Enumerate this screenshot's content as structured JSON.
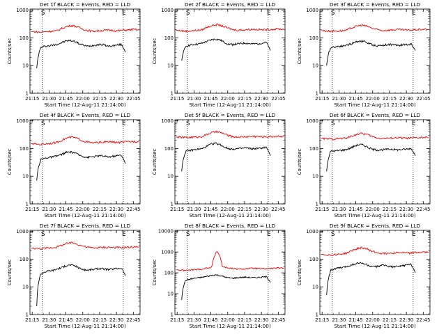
{
  "colors": {
    "events": "#000000",
    "lld": "#ee0000",
    "axes": "#000000",
    "markers": "#000000"
  },
  "chart_data": [
    {
      "type": "line",
      "title": "Det 1f BLACK = Events, RED = LLD",
      "xlabel": "Start Time (12-Aug-11 21:14:00)",
      "ylabel": "Counts/sec",
      "xticks": [
        "21:15",
        "21:30",
        "21:45",
        "22:00",
        "22:15",
        "22:30",
        "22:45"
      ],
      "yticks": [
        "1",
        "10",
        "100",
        "1000"
      ],
      "ylim": [
        1,
        1100
      ],
      "yscale": "log",
      "markers": [
        "S",
        "E"
      ],
      "grid": false,
      "series": [
        {
          "name": "BLACK = Events",
          "color": "#000000",
          "t0": "21:19",
          "t1": "22:38",
          "values": [
            8,
            45,
            50,
            52,
            55,
            60,
            68,
            78,
            80,
            75,
            62,
            55,
            50,
            52,
            56,
            58,
            55,
            50,
            52,
            55,
            58,
            30
          ]
        },
        {
          "name": "RED = LLD",
          "color": "#ee0000",
          "t0": "21:14",
          "t1": "22:50",
          "values": [
            170,
            165,
            160,
            170,
            175,
            180,
            220,
            260,
            280,
            250,
            210,
            185,
            175,
            180,
            185,
            190,
            185,
            180,
            190,
            195,
            200,
            195
          ]
        }
      ]
    },
    {
      "type": "line",
      "title": "Det 2f BLACK = Events, RED = LLD",
      "xlabel": "Start Time (12-Aug-11 21:14:00)",
      "ylabel": "Counts/sec",
      "xticks": [
        "21:15",
        "21:30",
        "21:45",
        "22:00",
        "22:15",
        "22:30",
        "22:45"
      ],
      "yticks": [
        "1",
        "10",
        "100",
        "1000"
      ],
      "ylim": [
        1,
        1100
      ],
      "yscale": "log",
      "markers": [
        "S",
        "E"
      ],
      "grid": false,
      "series": [
        {
          "name": "BLACK = Events",
          "color": "#000000",
          "t0": "21:19",
          "t1": "22:38",
          "values": [
            15,
            50,
            55,
            58,
            60,
            65,
            75,
            85,
            90,
            85,
            70,
            60,
            58,
            60,
            62,
            65,
            62,
            60,
            62,
            65,
            68,
            35
          ]
        },
        {
          "name": "RED = LLD",
          "color": "#ee0000",
          "t0": "21:14",
          "t1": "22:50",
          "values": [
            190,
            180,
            175,
            180,
            185,
            195,
            240,
            280,
            300,
            270,
            230,
            200,
            190,
            195,
            200,
            205,
            200,
            195,
            200,
            205,
            210,
            205
          ]
        }
      ]
    },
    {
      "type": "line",
      "title": "Det 3f BLACK = Events, RED = LLD",
      "xlabel": "Start Time (12-Aug-11 21:14:00)",
      "ylabel": "Counts/sec",
      "xticks": [
        "21:15",
        "21:30",
        "21:45",
        "22:00",
        "22:15",
        "22:30",
        "22:45"
      ],
      "yticks": [
        "1",
        "10",
        "100",
        "1000"
      ],
      "ylim": [
        1,
        1100
      ],
      "yscale": "log",
      "markers": [
        "S",
        "E"
      ],
      "grid": false,
      "series": [
        {
          "name": "BLACK = Events",
          "color": "#000000",
          "t0": "21:19",
          "t1": "22:38",
          "values": [
            10,
            45,
            48,
            50,
            52,
            56,
            62,
            72,
            78,
            74,
            62,
            55,
            52,
            54,
            56,
            58,
            56,
            54,
            56,
            58,
            60,
            35
          ]
        },
        {
          "name": "RED = LLD",
          "color": "#ee0000",
          "t0": "21:14",
          "t1": "22:50",
          "values": [
            185,
            180,
            175,
            178,
            180,
            190,
            230,
            270,
            290,
            260,
            220,
            195,
            185,
            190,
            195,
            200,
            195,
            190,
            195,
            200,
            205,
            200
          ]
        }
      ]
    },
    {
      "type": "line",
      "title": "Det 4f BLACK = Events, RED = LLD",
      "xlabel": "Start Time (12-Aug-11 21:14:00)",
      "ylabel": "Counts/sec",
      "xticks": [
        "21:15",
        "21:30",
        "21:45",
        "22:00",
        "22:15",
        "22:30",
        "22:45"
      ],
      "yticks": [
        "1",
        "10",
        "100",
        "1000"
      ],
      "ylim": [
        1,
        1100
      ],
      "yscale": "log",
      "markers": [
        "S",
        "E"
      ],
      "grid": false,
      "series": [
        {
          "name": "BLACK = Events",
          "color": "#000000",
          "t0": "21:19",
          "t1": "22:38",
          "values": [
            7,
            40,
            45,
            48,
            50,
            55,
            62,
            72,
            75,
            70,
            58,
            52,
            48,
            50,
            52,
            55,
            52,
            50,
            52,
            55,
            58,
            28
          ]
        },
        {
          "name": "RED = LLD",
          "color": "#ee0000",
          "t0": "21:14",
          "t1": "22:50",
          "values": [
            150,
            145,
            140,
            150,
            155,
            165,
            200,
            240,
            260,
            230,
            190,
            170,
            160,
            165,
            170,
            175,
            170,
            165,
            170,
            175,
            180,
            175
          ]
        }
      ]
    },
    {
      "type": "line",
      "title": "Det 5f BLACK = Events, RED = LLD",
      "xlabel": "Start Time (12-Aug-11 21:14:00)",
      "ylabel": "Counts/sec",
      "xticks": [
        "21:15",
        "21:30",
        "21:45",
        "22:00",
        "22:15",
        "22:30",
        "22:45"
      ],
      "yticks": [
        "1",
        "10",
        "100",
        "1000"
      ],
      "ylim": [
        1,
        1100
      ],
      "yscale": "log",
      "markers": [
        "S",
        "E"
      ],
      "grid": false,
      "series": [
        {
          "name": "BLACK = Events",
          "color": "#000000",
          "t0": "21:19",
          "t1": "22:38",
          "values": [
            15,
            80,
            85,
            90,
            95,
            100,
            120,
            145,
            155,
            140,
            115,
            100,
            95,
            98,
            100,
            105,
            100,
            98,
            100,
            105,
            110,
            55
          ]
        },
        {
          "name": "RED = LLD",
          "color": "#ee0000",
          "t0": "21:14",
          "t1": "22:50",
          "values": [
            260,
            255,
            250,
            255,
            260,
            270,
            320,
            380,
            400,
            360,
            300,
            270,
            260,
            265,
            270,
            275,
            270,
            265,
            270,
            275,
            280,
            275
          ]
        }
      ]
    },
    {
      "type": "line",
      "title": "Det 6f BLACK = Events, RED = LLD",
      "xlabel": "Start Time (12-Aug-11 21:14:00)",
      "ylabel": "Counts/sec",
      "xticks": [
        "21:15",
        "21:30",
        "21:45",
        "22:00",
        "22:15",
        "22:30",
        "22:45"
      ],
      "yticks": [
        "1",
        "10",
        "100",
        "1000"
      ],
      "ylim": [
        1,
        1100
      ],
      "yscale": "log",
      "markers": [
        "S",
        "E"
      ],
      "grid": false,
      "series": [
        {
          "name": "BLACK = Events",
          "color": "#000000",
          "t0": "21:19",
          "t1": "22:38",
          "values": [
            15,
            80,
            82,
            85,
            88,
            95,
            110,
            130,
            140,
            128,
            105,
            92,
            88,
            90,
            92,
            95,
            92,
            90,
            92,
            95,
            100,
            55
          ]
        },
        {
          "name": "RED = LLD",
          "color": "#ee0000",
          "t0": "21:14",
          "t1": "22:50",
          "values": [
            230,
            225,
            220,
            225,
            230,
            240,
            280,
            330,
            350,
            320,
            270,
            240,
            230,
            235,
            240,
            245,
            240,
            235,
            240,
            245,
            250,
            245
          ]
        }
      ]
    },
    {
      "type": "line",
      "title": "Det 7f BLACK = Events, RED = LLD",
      "xlabel": "Start Time (12-Aug-11 21:14:00)",
      "ylabel": "Counts/sec",
      "xticks": [
        "21:15",
        "21:30",
        "21:45",
        "22:00",
        "22:15",
        "22:30",
        "22:45"
      ],
      "yticks": [
        "1",
        "10",
        "100",
        "1000"
      ],
      "ylim": [
        1,
        1100
      ],
      "yscale": "log",
      "markers": [
        "S",
        "E"
      ],
      "grid": false,
      "series": [
        {
          "name": "BLACK = Events",
          "color": "#000000",
          "t0": "21:19",
          "t1": "22:38",
          "values": [
            2,
            30,
            35,
            38,
            40,
            45,
            50,
            58,
            62,
            58,
            48,
            42,
            40,
            42,
            44,
            46,
            44,
            42,
            44,
            46,
            48,
            25
          ]
        },
        {
          "name": "RED = LLD",
          "color": "#ee0000",
          "t0": "21:14",
          "t1": "22:50",
          "values": [
            250,
            245,
            240,
            250,
            260,
            275,
            320,
            370,
            390,
            350,
            300,
            270,
            255,
            260,
            265,
            270,
            265,
            260,
            265,
            270,
            275,
            270
          ]
        }
      ]
    },
    {
      "type": "line",
      "title": "Det 8f BLACK = Events, RED = LLD",
      "xlabel": "Start Time (12-Aug-11 21:14:00)",
      "ylabel": "Counts/sec",
      "xticks": [
        "21:15",
        "21:30",
        "21:45",
        "22:00",
        "22:15",
        "22:30",
        "22:45"
      ],
      "yticks": [
        "1",
        "10",
        "100",
        "1000",
        "10000"
      ],
      "ylim": [
        1,
        11000
      ],
      "yscale": "log",
      "markers": [
        "S",
        "E"
      ],
      "grid": false,
      "series": [
        {
          "name": "BLACK = Events",
          "color": "#000000",
          "t0": "21:19",
          "t1": "22:38",
          "values": [
            5,
            45,
            50,
            55,
            58,
            62,
            68,
            75,
            80,
            75,
            65,
            58,
            55,
            58,
            60,
            62,
            60,
            58,
            60,
            62,
            65,
            35
          ]
        },
        {
          "name": "RED = LLD",
          "color": "#ee0000",
          "t0": "21:14",
          "t1": "22:50",
          "values": [
            140,
            135,
            130,
            140,
            145,
            150,
            170,
            190,
            1100,
            200,
            175,
            160,
            150,
            155,
            160,
            165,
            160,
            155,
            160,
            165,
            170,
            165
          ]
        }
      ]
    },
    {
      "type": "line",
      "title": "Det 9f BLACK = Events, RED = LLD",
      "xlabel": "Start Time (12-Aug-11 21:14:00)",
      "ylabel": "Counts/sec",
      "xticks": [
        "21:15",
        "21:30",
        "21:45",
        "22:00",
        "22:15",
        "22:30",
        "22:45"
      ],
      "yticks": [
        "1",
        "10",
        "100",
        "1000"
      ],
      "ylim": [
        1,
        1100
      ],
      "yscale": "log",
      "markers": [
        "S",
        "E"
      ],
      "grid": false,
      "series": [
        {
          "name": "BLACK = Events",
          "color": "#000000",
          "t0": "21:19",
          "t1": "22:38",
          "values": [
            5,
            40,
            45,
            48,
            50,
            55,
            62,
            70,
            72,
            68,
            58,
            52,
            55,
            60,
            58,
            55,
            52,
            55,
            58,
            62,
            65,
            32
          ]
        },
        {
          "name": "RED = LLD",
          "color": "#ee0000",
          "t0": "21:14",
          "t1": "22:50",
          "values": [
            150,
            145,
            140,
            148,
            155,
            165,
            200,
            240,
            260,
            230,
            190,
            170,
            160,
            165,
            170,
            175,
            170,
            165,
            170,
            175,
            180,
            175
          ]
        }
      ]
    }
  ]
}
